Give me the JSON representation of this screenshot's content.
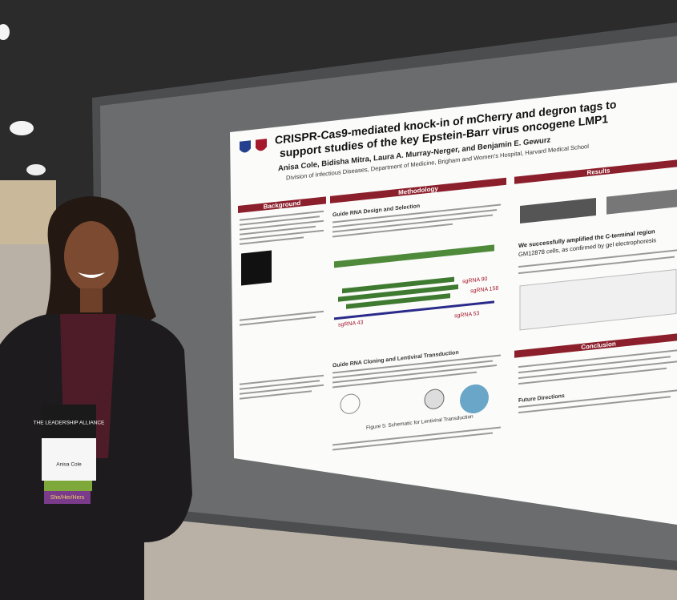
{
  "poster": {
    "title_lines": [
      "CRISPR-Cas9-mediated knock-in of mCherry and degron tags to",
      "support studies of the key Epstein-Barr virus oncogene LMP1"
    ],
    "authors": "Anisa Cole, Bidisha Mitra, Laura A. Murray-Nerger, and Benjamin E. Gewurz",
    "affiliation": "Division of Infectious Diseases, Department of Medicine, Brigham and Women's Hospital, Harvard Medical School",
    "sections": [
      "Background",
      "Methodology",
      "Results",
      "Conclusion"
    ],
    "subheadings": [
      "Guide RNA Design and Selection",
      "Guide RNA Cloning and Lentiviral Transduction",
      "Future Directions"
    ],
    "figure_labels": [
      "sgRNA 90",
      "sgRNA 158",
      "sgRNA 43",
      "sgRNA 53"
    ],
    "caption": "Figure 5: Schematic for Lentiviral Transduction",
    "results_text": [
      "We successfully amplified the C-terminal region",
      "GM12878 cells, as confirmed by gel electrophoresis"
    ]
  },
  "badge": {
    "organization": "THE LEADERSHIP ALLIANCE",
    "name": "Anisa Cole",
    "pronouns": "She/Her/Hers"
  }
}
